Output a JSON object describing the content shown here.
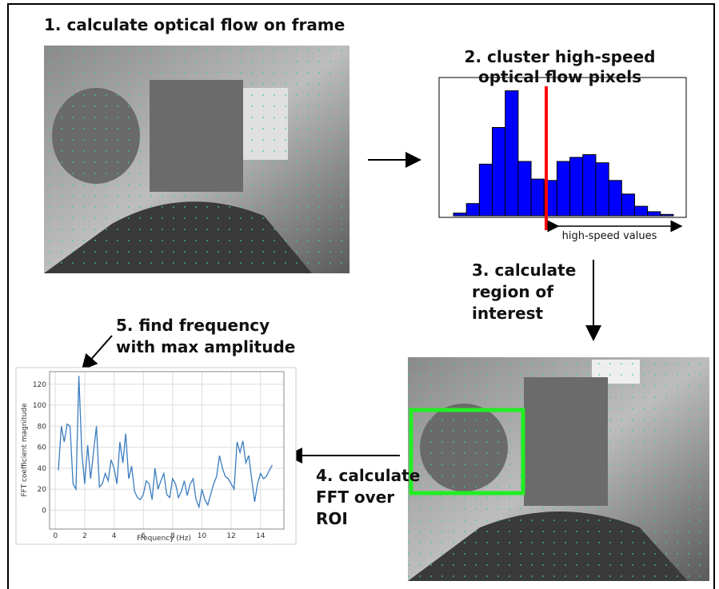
{
  "steps": [
    [
      "1. calculate optical flow on frame"
    ],
    [
      "2. cluster high-speed",
      "optical flow pixels"
    ],
    [
      "3. calculate",
      "region of",
      "interest"
    ],
    [
      "4. calculate",
      "FFT over",
      "ROI"
    ],
    [
      "5. find frequency",
      "with max amplitude"
    ]
  ],
  "chart_data": [
    {
      "type": "bar",
      "values": [
        2,
        9,
        38,
        65,
        92,
        40,
        27,
        26,
        40,
        43,
        45,
        39,
        26,
        16,
        7,
        3,
        1
      ],
      "color": "#0000ff",
      "ylim": [
        0,
        100
      ],
      "annotation": "high-speed values"
    },
    {
      "type": "line",
      "color": "#3b7dc0",
      "grid": true,
      "x": [
        0.2,
        0.4,
        0.6,
        0.8,
        1.0,
        1.2,
        1.4,
        1.6,
        1.8,
        2.0,
        2.2,
        2.4,
        2.6,
        2.8,
        3.0,
        3.2,
        3.4,
        3.6,
        3.8,
        4.0,
        4.2,
        4.4,
        4.6,
        4.8,
        5.0,
        5.2,
        5.4,
        5.6,
        5.8,
        6.0,
        6.2,
        6.4,
        6.6,
        6.8,
        7.0,
        7.2,
        7.4,
        7.6,
        7.8,
        8.0,
        8.2,
        8.4,
        8.6,
        8.8,
        9.0,
        9.2,
        9.4,
        9.6,
        9.8,
        10.0,
        10.2,
        10.4,
        10.6,
        10.8,
        11.0,
        11.2,
        11.4,
        11.6,
        11.8,
        12.0,
        12.2,
        12.4,
        12.6,
        12.8,
        13.0,
        13.2,
        13.4,
        13.6,
        13.8,
        14.0,
        14.2,
        14.4,
        14.6,
        14.8
      ],
      "values": [
        38,
        80,
        65,
        82,
        80,
        25,
        20,
        128,
        55,
        25,
        62,
        30,
        55,
        80,
        22,
        25,
        35,
        28,
        48,
        40,
        25,
        65,
        45,
        73,
        30,
        42,
        18,
        12,
        10,
        15,
        28,
        25,
        10,
        40,
        20,
        28,
        35,
        15,
        12,
        30,
        25,
        12,
        18,
        28,
        14,
        25,
        30,
        10,
        3,
        20,
        10,
        5,
        15,
        25,
        32,
        52,
        40,
        32,
        30,
        25,
        20,
        65,
        55,
        66,
        45,
        52,
        30,
        8,
        25,
        35,
        30,
        32,
        38,
        43
      ],
      "xlim": [
        -0.4,
        15.6
      ],
      "ylim": [
        -18,
        132
      ],
      "xticks": [
        0,
        2,
        4,
        6,
        8,
        10,
        12,
        14
      ],
      "yticks": [
        0,
        20,
        40,
        60,
        80,
        100,
        120
      ],
      "xlabel": "Frequency (Hz)",
      "ylabel": "FFT coefficient magnitude"
    }
  ]
}
